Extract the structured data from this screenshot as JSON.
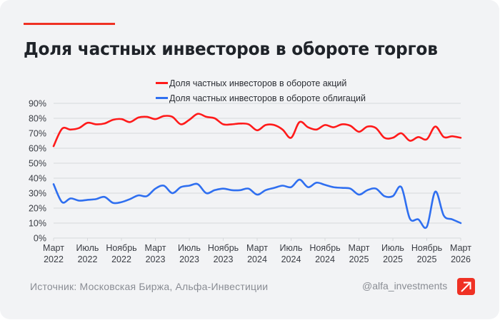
{
  "header": {
    "title": "Доля частных инвесторов в обороте торгов"
  },
  "footer": {
    "source": "Источник: Московская Биржа, Альфа-Инвестиции",
    "handle": "@alfa_investments",
    "logo_icon": "alfa-arrow-logo-icon"
  },
  "colors": {
    "accent": "#ef3124",
    "stocks_series": "#ff1a1a",
    "bonds_series": "#2f6ff0",
    "card_background": "#f2f3f5",
    "gridline": "#d6d8dc"
  },
  "chart_data": {
    "type": "line",
    "title": "Доля частных инвесторов в обороте торгов",
    "xlabel": "",
    "ylabel": "",
    "ylim": [
      0,
      90
    ],
    "y_ticks": [
      "0%",
      "10%",
      "20%",
      "30%",
      "40%",
      "50%",
      "60%",
      "70%",
      "80%",
      "90%"
    ],
    "y_tick_values": [
      0,
      10,
      20,
      30,
      40,
      50,
      60,
      70,
      80,
      90
    ],
    "grid": true,
    "legend_position": "top-center",
    "x_range": [
      "2022-03",
      "2026-03"
    ],
    "x_ticks": [
      {
        "month": "Март",
        "year": "2022",
        "index": 0
      },
      {
        "month": "Июль",
        "year": "2022",
        "index": 4
      },
      {
        "month": "Ноябрь",
        "year": "2022",
        "index": 8
      },
      {
        "month": "Март",
        "year": "2023",
        "index": 12
      },
      {
        "month": "Июль",
        "year": "2023",
        "index": 16
      },
      {
        "month": "Ноябрь",
        "year": "2023",
        "index": 20
      },
      {
        "month": "Март",
        "year": "2024",
        "index": 24
      },
      {
        "month": "Июль",
        "year": "2024",
        "index": 28
      },
      {
        "month": "Ноябрь",
        "year": "2024",
        "index": 32
      },
      {
        "month": "Март",
        "year": "2025",
        "index": 36
      },
      {
        "month": "Июль",
        "year": "2025",
        "index": 40
      },
      {
        "month": "Ноябрь",
        "year": "2025",
        "index": 44
      },
      {
        "month": "Март",
        "year": "2026",
        "index": 48
      }
    ],
    "x": [
      "2022-03",
      "2022-04",
      "2022-05",
      "2022-06",
      "2022-07",
      "2022-08",
      "2022-09",
      "2022-10",
      "2022-11",
      "2022-12",
      "2023-01",
      "2023-02",
      "2023-03",
      "2023-04",
      "2023-05",
      "2023-06",
      "2023-07",
      "2023-08",
      "2023-09",
      "2023-10",
      "2023-11",
      "2023-12",
      "2024-01",
      "2024-02",
      "2024-03",
      "2024-04",
      "2024-05",
      "2024-06",
      "2024-07",
      "2024-08",
      "2024-09",
      "2024-10",
      "2024-11",
      "2024-12",
      "2025-01",
      "2025-02",
      "2025-03",
      "2025-04",
      "2025-05",
      "2025-06",
      "2025-07",
      "2025-08",
      "2025-09",
      "2025-10",
      "2025-11",
      "2025-12",
      "2026-01",
      "2026-02",
      "2026-03"
    ],
    "series": [
      {
        "name": "Доля частных инвесторов в обороте акций",
        "color": "#ff1a1a",
        "values": [
          61.4,
          73,
          72.5,
          73.5,
          77,
          76,
          76.5,
          79,
          79.5,
          77.5,
          80.5,
          81,
          79.5,
          81.5,
          81,
          76,
          79,
          83,
          81,
          80,
          76,
          76,
          76.5,
          76,
          72,
          75.5,
          75.5,
          72.5,
          67,
          77.5,
          74,
          72.5,
          75.5,
          74,
          76,
          75,
          71,
          74.5,
          73.5,
          67,
          67,
          70,
          65,
          67.5,
          66,
          74.5,
          67.5,
          68,
          67
        ]
      },
      {
        "name": "Доля частных инвесторов в обороте облигаций",
        "color": "#2f6ff0",
        "values": [
          36,
          24,
          26.5,
          25,
          25.5,
          26,
          27.5,
          23.5,
          24,
          26,
          28.5,
          28,
          33,
          35,
          30,
          34,
          35,
          36,
          30,
          32,
          33,
          32,
          32,
          33,
          29,
          32,
          33.5,
          35,
          34,
          39,
          34,
          37,
          35.5,
          34,
          33.5,
          33,
          29,
          32,
          33,
          28,
          28,
          34,
          13,
          12.5,
          7.5,
          31,
          15,
          12.5,
          10
        ]
      }
    ]
  }
}
